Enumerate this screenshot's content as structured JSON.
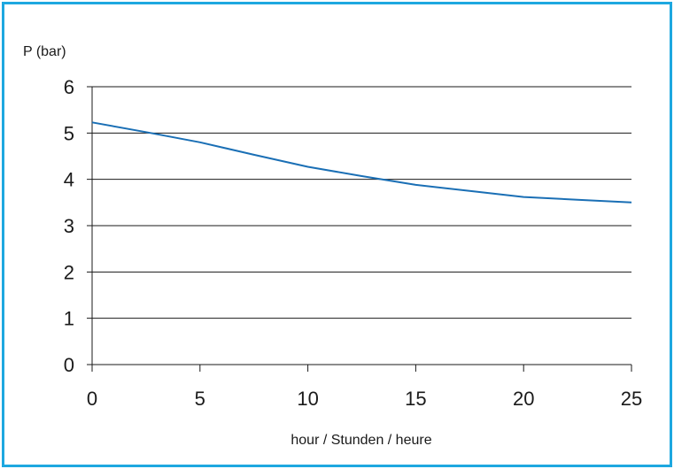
{
  "chart_data": {
    "type": "line",
    "title": "",
    "ylabel": "P (bar)",
    "xlabel": "hour / Stunden / heure",
    "xlim": [
      0,
      25
    ],
    "ylim": [
      0,
      6
    ],
    "x_ticks": [
      0,
      5,
      10,
      15,
      20,
      25
    ],
    "y_ticks": [
      0,
      1,
      2,
      3,
      4,
      5,
      6
    ],
    "grid": "horizontal",
    "legend": "none",
    "series": [
      {
        "color": "#1a6fb5",
        "x": [
          0,
          2.5,
          5,
          7.5,
          10,
          12.5,
          15,
          17.5,
          20,
          22.5,
          25
        ],
        "y": [
          5.23,
          5.02,
          4.8,
          4.53,
          4.27,
          4.07,
          3.88,
          3.75,
          3.62,
          3.56,
          3.5
        ]
      }
    ]
  },
  "colors": {
    "border": "#1ea8e0",
    "line": "#1a6fb5",
    "grid": "#1a1a1a"
  }
}
